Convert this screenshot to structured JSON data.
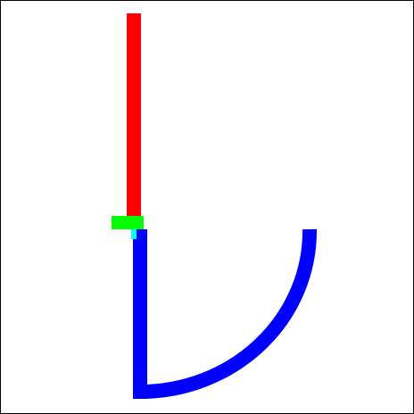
{
  "colors": {
    "background": "#ffffff",
    "border": "#000000",
    "upper_rod": "#ff0000",
    "joint": "#00ff00",
    "joint_marker": "#00ffff",
    "lower_segment": "#0000ff",
    "arc_segment": "#0000ff"
  }
}
